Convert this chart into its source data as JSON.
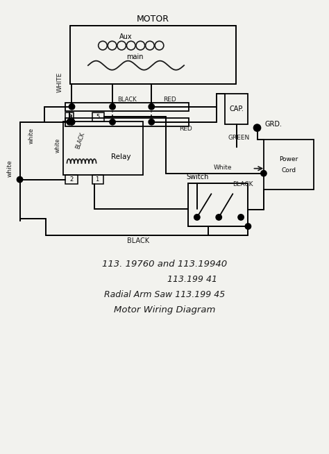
{
  "bg_color": "#f2f2ee",
  "line_color": "#1a1a1a",
  "figsize": [
    4.74,
    6.54
  ],
  "dpi": 100,
  "subtitle_lines": [
    "113. 19760 and 113.19940",
    "           113.199 41",
    "Radial Arm Saw 113.199 45",
    "  Motor Wiring Diagram"
  ]
}
